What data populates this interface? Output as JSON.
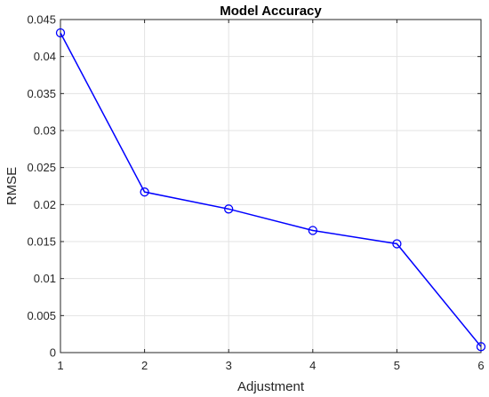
{
  "chart_data": {
    "type": "line",
    "title": "Model Accuracy",
    "xlabel": "Adjustment",
    "ylabel": "RMSE",
    "xlim": [
      1,
      6
    ],
    "ylim": [
      0,
      0.045
    ],
    "x_ticks": [
      "1",
      "2",
      "3",
      "4",
      "5",
      "6"
    ],
    "y_ticks": [
      "0",
      "0.005",
      "0.01",
      "0.015",
      "0.02",
      "0.025",
      "0.03",
      "0.035",
      "0.04",
      "0.045"
    ],
    "grid": true,
    "marker": "circle",
    "series": [
      {
        "color": "#0000ff",
        "x": [
          1,
          2,
          3,
          4,
          5,
          6
        ],
        "y": [
          0.0432,
          0.0217,
          0.0194,
          0.0165,
          0.0147,
          0.0008
        ]
      }
    ]
  }
}
